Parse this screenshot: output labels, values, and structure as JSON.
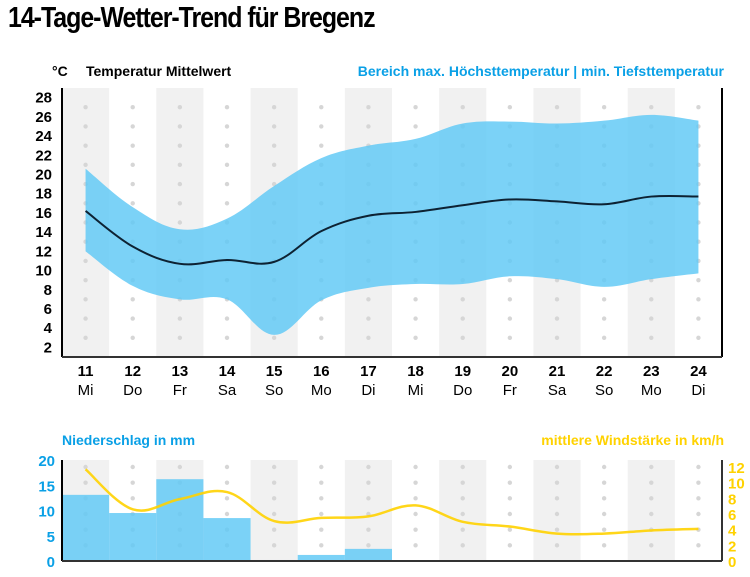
{
  "title": "14-Tage-Wetter-Trend für Bregenz",
  "colors": {
    "band": "#5ec8f5",
    "mean_line": "#0d2233",
    "precip": "#5ec8f5",
    "wind": "#ffd200",
    "blue_text": "#0aa0e6",
    "yellow_text": "#ffd200",
    "stripe": "#f1f1f1",
    "dot": "#d6d6d6"
  },
  "chart_data": [
    {
      "type": "area",
      "title": "Temperatur",
      "ylabel": "°C",
      "legend": {
        "mean": "Temperatur Mittelwert",
        "range": "Bereich max. Höchsttemperatur | min. Tiefsttemperatur"
      },
      "ylim": [
        1,
        29
      ],
      "yticks": [
        28,
        26,
        24,
        22,
        20,
        18,
        16,
        14,
        12,
        10,
        8,
        6,
        4,
        2
      ],
      "categories": [
        "11",
        "12",
        "13",
        "14",
        "15",
        "16",
        "17",
        "18",
        "19",
        "20",
        "21",
        "22",
        "23",
        "24"
      ],
      "weekdays": [
        "Mi",
        "Do",
        "Fr",
        "Sa",
        "So",
        "Mo",
        "Di",
        "Mi",
        "Do",
        "Fr",
        "Sa",
        "So",
        "Mo",
        "Di"
      ],
      "series": [
        {
          "name": "max",
          "values": [
            20.6,
            16.6,
            14.3,
            15.4,
            18.8,
            21.7,
            23.0,
            23.7,
            25.3,
            25.5,
            25.3,
            25.6,
            26.2,
            25.6
          ]
        },
        {
          "name": "mean",
          "values": [
            16.2,
            12.5,
            10.7,
            11.1,
            10.9,
            14.1,
            15.7,
            16.1,
            16.8,
            17.4,
            17.2,
            16.9,
            17.7,
            17.7
          ]
        },
        {
          "name": "min",
          "values": [
            12.0,
            8.4,
            7.0,
            7.0,
            3.3,
            6.9,
            8.2,
            8.6,
            8.6,
            9.4,
            9.1,
            8.3,
            9.1,
            9.7
          ]
        }
      ]
    },
    {
      "type": "bar",
      "title": "Niederschlag in mm",
      "ylim": [
        0,
        20
      ],
      "yticks": [
        20,
        15,
        10,
        5,
        0
      ],
      "categories": [
        "11",
        "12",
        "13",
        "14",
        "15",
        "16",
        "17",
        "18",
        "19",
        "20",
        "21",
        "22",
        "23",
        "24"
      ],
      "values": [
        13.1,
        9.5,
        16.2,
        8.5,
        0.2,
        1.2,
        2.4,
        0,
        0,
        0,
        0,
        0,
        0,
        0
      ]
    },
    {
      "type": "line",
      "title": "mittlere Windstärke in km/h",
      "ylim": [
        0,
        12
      ],
      "yticks": [
        12,
        10,
        8,
        6,
        4,
        2,
        0
      ],
      "categories": [
        "11",
        "12",
        "13",
        "14",
        "15",
        "16",
        "17",
        "18",
        "19",
        "20",
        "21",
        "22",
        "23",
        "24"
      ],
      "values": [
        11.7,
        6.6,
        7.9,
        8.8,
        5.1,
        5.5,
        5.7,
        7.1,
        5.0,
        4.4,
        3.5,
        3.5,
        3.9,
        4.1
      ]
    }
  ]
}
